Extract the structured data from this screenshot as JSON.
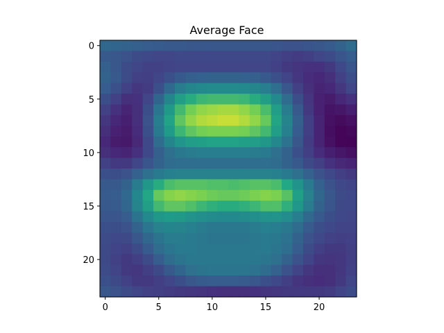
{
  "chart_data": {
    "type": "heatmap",
    "title": "Average Face",
    "xlabel": "",
    "ylabel": "",
    "colormap": "viridis",
    "rows": 24,
    "cols": 24,
    "xlim": [
      -0.5,
      23.5
    ],
    "ylim": [
      23.5,
      -0.5
    ],
    "xticks": [
      0,
      5,
      10,
      15,
      20
    ],
    "yticks": [
      0,
      5,
      10,
      15,
      20
    ],
    "grid": false,
    "values": [
      [
        0.42,
        0.41,
        0.4,
        0.38,
        0.37,
        0.36,
        0.35,
        0.35,
        0.34,
        0.34,
        0.34,
        0.34,
        0.34,
        0.34,
        0.34,
        0.34,
        0.33,
        0.32,
        0.32,
        0.33,
        0.34,
        0.36,
        0.4,
        0.44
      ],
      [
        0.35,
        0.34,
        0.32,
        0.29,
        0.27,
        0.26,
        0.26,
        0.27,
        0.27,
        0.27,
        0.27,
        0.27,
        0.27,
        0.27,
        0.27,
        0.27,
        0.25,
        0.23,
        0.22,
        0.23,
        0.26,
        0.29,
        0.33,
        0.37
      ],
      [
        0.38,
        0.34,
        0.29,
        0.26,
        0.24,
        0.24,
        0.25,
        0.26,
        0.26,
        0.26,
        0.26,
        0.26,
        0.26,
        0.26,
        0.26,
        0.26,
        0.24,
        0.21,
        0.19,
        0.18,
        0.18,
        0.21,
        0.27,
        0.33
      ],
      [
        0.4,
        0.35,
        0.29,
        0.24,
        0.23,
        0.26,
        0.31,
        0.35,
        0.38,
        0.39,
        0.4,
        0.4,
        0.4,
        0.39,
        0.38,
        0.35,
        0.31,
        0.25,
        0.2,
        0.16,
        0.14,
        0.17,
        0.24,
        0.3
      ],
      [
        0.37,
        0.31,
        0.24,
        0.2,
        0.22,
        0.31,
        0.43,
        0.52,
        0.57,
        0.59,
        0.6,
        0.6,
        0.6,
        0.59,
        0.57,
        0.53,
        0.45,
        0.34,
        0.24,
        0.17,
        0.13,
        0.14,
        0.2,
        0.26
      ],
      [
        0.3,
        0.24,
        0.17,
        0.18,
        0.26,
        0.41,
        0.57,
        0.7,
        0.76,
        0.79,
        0.8,
        0.8,
        0.8,
        0.79,
        0.76,
        0.7,
        0.59,
        0.44,
        0.3,
        0.19,
        0.12,
        0.1,
        0.14,
        0.18
      ],
      [
        0.24,
        0.18,
        0.13,
        0.17,
        0.3,
        0.49,
        0.67,
        0.8,
        0.87,
        0.9,
        0.91,
        0.92,
        0.92,
        0.9,
        0.87,
        0.81,
        0.69,
        0.52,
        0.35,
        0.21,
        0.12,
        0.07,
        0.08,
        0.11
      ],
      [
        0.2,
        0.14,
        0.11,
        0.17,
        0.32,
        0.53,
        0.72,
        0.84,
        0.9,
        0.93,
        0.94,
        0.95,
        0.95,
        0.93,
        0.9,
        0.85,
        0.73,
        0.56,
        0.38,
        0.23,
        0.13,
        0.06,
        0.04,
        0.06
      ],
      [
        0.17,
        0.12,
        0.1,
        0.16,
        0.31,
        0.51,
        0.68,
        0.79,
        0.84,
        0.87,
        0.88,
        0.88,
        0.88,
        0.87,
        0.84,
        0.8,
        0.69,
        0.54,
        0.37,
        0.23,
        0.13,
        0.05,
        0.02,
        0.03
      ],
      [
        0.14,
        0.1,
        0.09,
        0.15,
        0.27,
        0.44,
        0.57,
        0.65,
        0.69,
        0.71,
        0.72,
        0.72,
        0.72,
        0.71,
        0.69,
        0.66,
        0.58,
        0.47,
        0.34,
        0.22,
        0.13,
        0.06,
        0.02,
        0.01
      ],
      [
        0.17,
        0.14,
        0.13,
        0.18,
        0.27,
        0.38,
        0.46,
        0.5,
        0.52,
        0.53,
        0.53,
        0.53,
        0.53,
        0.53,
        0.52,
        0.51,
        0.46,
        0.4,
        0.31,
        0.23,
        0.16,
        0.11,
        0.08,
        0.06
      ],
      [
        0.24,
        0.21,
        0.21,
        0.26,
        0.33,
        0.4,
        0.44,
        0.45,
        0.45,
        0.45,
        0.45,
        0.45,
        0.45,
        0.45,
        0.45,
        0.45,
        0.44,
        0.4,
        0.35,
        0.28,
        0.23,
        0.18,
        0.15,
        0.13
      ],
      [
        0.31,
        0.3,
        0.32,
        0.39,
        0.46,
        0.51,
        0.54,
        0.55,
        0.55,
        0.55,
        0.55,
        0.55,
        0.55,
        0.55,
        0.55,
        0.55,
        0.54,
        0.51,
        0.46,
        0.39,
        0.32,
        0.27,
        0.23,
        0.21
      ],
      [
        0.35,
        0.35,
        0.4,
        0.52,
        0.66,
        0.76,
        0.81,
        0.83,
        0.83,
        0.83,
        0.82,
        0.82,
        0.81,
        0.82,
        0.83,
        0.83,
        0.81,
        0.75,
        0.64,
        0.51,
        0.39,
        0.32,
        0.27,
        0.25
      ],
      [
        0.36,
        0.37,
        0.43,
        0.58,
        0.74,
        0.85,
        0.89,
        0.9,
        0.89,
        0.88,
        0.86,
        0.85,
        0.85,
        0.86,
        0.88,
        0.89,
        0.88,
        0.83,
        0.71,
        0.55,
        0.42,
        0.34,
        0.29,
        0.27
      ],
      [
        0.35,
        0.36,
        0.42,
        0.56,
        0.7,
        0.8,
        0.84,
        0.84,
        0.82,
        0.79,
        0.77,
        0.76,
        0.76,
        0.77,
        0.79,
        0.82,
        0.82,
        0.77,
        0.66,
        0.52,
        0.4,
        0.33,
        0.28,
        0.27
      ],
      [
        0.33,
        0.33,
        0.37,
        0.48,
        0.59,
        0.66,
        0.68,
        0.67,
        0.64,
        0.62,
        0.6,
        0.59,
        0.59,
        0.6,
        0.62,
        0.64,
        0.64,
        0.61,
        0.53,
        0.43,
        0.35,
        0.3,
        0.27,
        0.26
      ],
      [
        0.31,
        0.3,
        0.32,
        0.4,
        0.49,
        0.55,
        0.57,
        0.56,
        0.54,
        0.52,
        0.5,
        0.5,
        0.5,
        0.5,
        0.52,
        0.54,
        0.53,
        0.5,
        0.44,
        0.36,
        0.3,
        0.27,
        0.25,
        0.25
      ],
      [
        0.29,
        0.27,
        0.28,
        0.34,
        0.42,
        0.48,
        0.52,
        0.52,
        0.51,
        0.5,
        0.49,
        0.49,
        0.49,
        0.49,
        0.5,
        0.51,
        0.5,
        0.47,
        0.4,
        0.32,
        0.27,
        0.24,
        0.23,
        0.24
      ],
      [
        0.28,
        0.25,
        0.24,
        0.29,
        0.36,
        0.44,
        0.49,
        0.51,
        0.51,
        0.5,
        0.5,
        0.5,
        0.5,
        0.5,
        0.5,
        0.51,
        0.49,
        0.45,
        0.37,
        0.29,
        0.23,
        0.21,
        0.21,
        0.23
      ],
      [
        0.28,
        0.24,
        0.21,
        0.23,
        0.29,
        0.37,
        0.44,
        0.48,
        0.5,
        0.5,
        0.5,
        0.5,
        0.5,
        0.5,
        0.5,
        0.49,
        0.46,
        0.4,
        0.32,
        0.25,
        0.2,
        0.19,
        0.2,
        0.23
      ],
      [
        0.29,
        0.25,
        0.21,
        0.2,
        0.23,
        0.28,
        0.35,
        0.41,
        0.46,
        0.48,
        0.49,
        0.49,
        0.49,
        0.49,
        0.47,
        0.44,
        0.39,
        0.32,
        0.25,
        0.2,
        0.17,
        0.17,
        0.2,
        0.24
      ],
      [
        0.31,
        0.28,
        0.24,
        0.21,
        0.21,
        0.23,
        0.26,
        0.3,
        0.34,
        0.36,
        0.37,
        0.37,
        0.37,
        0.36,
        0.34,
        0.31,
        0.27,
        0.23,
        0.19,
        0.17,
        0.16,
        0.17,
        0.21,
        0.26
      ],
      [
        0.34,
        0.32,
        0.29,
        0.26,
        0.24,
        0.23,
        0.22,
        0.21,
        0.2,
        0.19,
        0.18,
        0.17,
        0.17,
        0.17,
        0.18,
        0.19,
        0.2,
        0.21,
        0.21,
        0.21,
        0.21,
        0.22,
        0.25,
        0.29
      ]
    ]
  }
}
